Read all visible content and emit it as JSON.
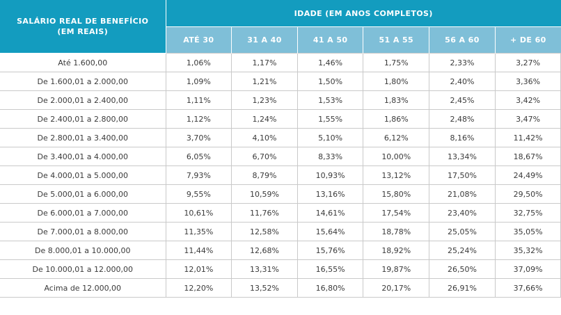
{
  "header": {
    "salary_label_line1": "SALÁRIO REAL DE BENEFÍCIO",
    "salary_label_line2": "(EM REAIS)",
    "age_group_label": "IDADE (EM ANOS COMPLETOS)",
    "age_columns": [
      "ATÉ 30",
      "31 A 40",
      "41 A 50",
      "51 A 55",
      "56 A 60",
      "+ DE 60"
    ]
  },
  "colors": {
    "header_dark": "#139cbf",
    "header_light": "#7fbfd8",
    "text": "#3a3a3a",
    "grid": "#c9c9c9"
  },
  "rows": [
    {
      "range": "Até 1.600,00",
      "values": [
        "1,06%",
        "1,17%",
        "1,46%",
        "1,75%",
        "2,33%",
        "3,27%"
      ]
    },
    {
      "range": "De 1.600,01 a 2.000,00",
      "values": [
        "1,09%",
        "1,21%",
        "1,50%",
        "1,80%",
        "2,40%",
        "3,36%"
      ]
    },
    {
      "range": "De 2.000,01 a 2.400,00",
      "values": [
        "1,11%",
        "1,23%",
        "1,53%",
        "1,83%",
        "2,45%",
        "3,42%"
      ]
    },
    {
      "range": "De 2.400,01 a 2.800,00",
      "values": [
        "1,12%",
        "1,24%",
        "1,55%",
        "1,86%",
        "2,48%",
        "3,47%"
      ]
    },
    {
      "range": "De 2.800,01 a 3.400,00",
      "values": [
        "3,70%",
        "4,10%",
        "5,10%",
        "6,12%",
        "8,16%",
        "11,42%"
      ]
    },
    {
      "range": "De 3.400,01 a 4.000,00",
      "values": [
        "6,05%",
        "6,70%",
        "8,33%",
        "10,00%",
        "13,34%",
        "18,67%"
      ]
    },
    {
      "range": "De 4.000,01 a 5.000,00",
      "values": [
        "7,93%",
        "8,79%",
        "10,93%",
        "13,12%",
        "17,50%",
        "24,49%"
      ]
    },
    {
      "range": "De 5.000,01 a 6.000,00",
      "values": [
        "9,55%",
        "10,59%",
        "13,16%",
        "15,80%",
        "21,08%",
        "29,50%"
      ]
    },
    {
      "range": "De 6.000,01 a 7.000,00",
      "values": [
        "10,61%",
        "11,76%",
        "14,61%",
        "17,54%",
        "23,40%",
        "32,75%"
      ]
    },
    {
      "range": "De 7.000,01 a 8.000,00",
      "values": [
        "11,35%",
        "12,58%",
        "15,64%",
        "18,78%",
        "25,05%",
        "35,05%"
      ]
    },
    {
      "range": "De 8.000,01 a 10.000,00",
      "values": [
        "11,44%",
        "12,68%",
        "15,76%",
        "18,92%",
        "25,24%",
        "35,32%"
      ]
    },
    {
      "range": "De 10.000,01 a 12.000,00",
      "values": [
        "12,01%",
        "13,31%",
        "16,55%",
        "19,87%",
        "26,50%",
        "37,09%"
      ]
    },
    {
      "range": "Acima de 12.000,00",
      "values": [
        "12,20%",
        "13,52%",
        "16,80%",
        "20,17%",
        "26,91%",
        "37,66%"
      ]
    }
  ]
}
